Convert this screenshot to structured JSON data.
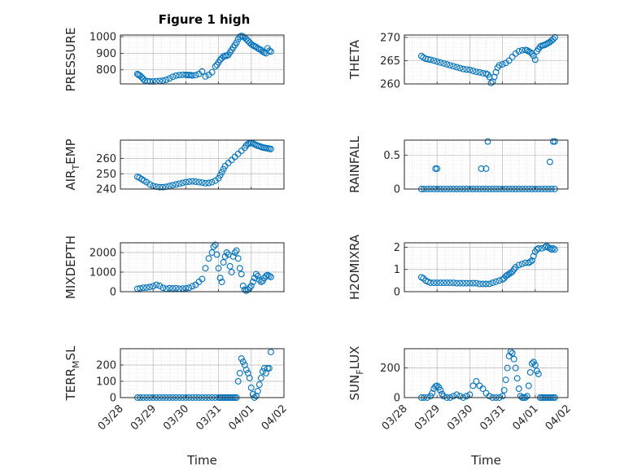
{
  "figure": {
    "title": "Figure 1 high",
    "marker_color": "#0072bd"
  },
  "chart_data": [
    {
      "type": "scatter",
      "ylabel": "PRESSURE",
      "yticks": [
        "800",
        "900",
        "1000"
      ],
      "ylim": [
        715,
        1010
      ],
      "xlim": [
        "03/28",
        "04/02"
      ],
      "xticks": [],
      "x": [
        0.52,
        0.55,
        0.6,
        0.65,
        0.7,
        0.75,
        0.82,
        0.9,
        1.0,
        1.1,
        1.2,
        1.3,
        1.4,
        1.5,
        1.6,
        1.7,
        1.8,
        1.9,
        2.0,
        2.05,
        2.1,
        2.15,
        2.2,
        2.3,
        2.4,
        2.5,
        2.6,
        2.7,
        2.8,
        2.9,
        2.95,
        3.0,
        3.05,
        3.1,
        3.15,
        3.2,
        3.25,
        3.3,
        3.35,
        3.4,
        3.45,
        3.5,
        3.55,
        3.6,
        3.65,
        3.7,
        3.75,
        3.8,
        3.85,
        3.9,
        3.95,
        4.0,
        4.05,
        4.1,
        4.15,
        4.2,
        4.25,
        4.3,
        4.35,
        4.4,
        4.45,
        4.5,
        4.55,
        4.6
      ],
      "y": [
        775,
        770,
        765,
        755,
        745,
        735,
        732,
        730,
        730,
        731,
        733,
        735,
        740,
        748,
        758,
        765,
        768,
        770,
        770,
        769,
        768,
        768,
        766,
        768,
        775,
        790,
        760,
        770,
        785,
        820,
        830,
        845,
        860,
        870,
        880,
        885,
        885,
        890,
        905,
        920,
        935,
        950,
        965,
        985,
        1000,
        1005,
        1000,
        995,
        985,
        975,
        965,
        955,
        948,
        942,
        938,
        930,
        925,
        920,
        910,
        905,
        900,
        930,
        915,
        910
      ]
    },
    {
      "type": "scatter",
      "ylabel": "THETA",
      "yticks": [
        "260",
        "265",
        "270"
      ],
      "ylim": [
        260,
        270.5
      ],
      "xlim": [
        "03/28",
        "04/02"
      ],
      "xticks": [],
      "x": [
        0.52,
        0.58,
        0.65,
        0.72,
        0.8,
        0.9,
        1.0,
        1.1,
        1.2,
        1.3,
        1.4,
        1.5,
        1.6,
        1.7,
        1.8,
        1.9,
        2.0,
        2.1,
        2.2,
        2.3,
        2.4,
        2.5,
        2.55,
        2.6,
        2.65,
        2.7,
        2.75,
        2.8,
        2.85,
        2.9,
        3.0,
        3.1,
        3.2,
        3.3,
        3.4,
        3.5,
        3.6,
        3.7,
        3.75,
        3.8,
        3.85,
        3.9,
        3.95,
        4.0,
        4.05,
        4.1,
        4.15,
        4.2,
        4.25,
        4.3,
        4.35,
        4.4,
        4.45,
        4.5,
        4.55,
        4.6
      ],
      "y": [
        266,
        265.7,
        265.4,
        265.3,
        265.2,
        265,
        264.8,
        264.6,
        264.4,
        264.2,
        264,
        263.8,
        263.6,
        263.4,
        263.2,
        263.1,
        263,
        262.8,
        262.6,
        262.5,
        262.3,
        262.2,
        262,
        261.5,
        260.2,
        260.5,
        261.5,
        262.5,
        263.5,
        264,
        264.2,
        264.5,
        265,
        265.8,
        266.5,
        267,
        267.2,
        267.3,
        267.2,
        267,
        266.8,
        266.5,
        266,
        265.2,
        267,
        267.5,
        268,
        268.2,
        268.3,
        268.4,
        268.6,
        268.8,
        269,
        269.3,
        269.6,
        270
      ]
    },
    {
      "type": "scatter",
      "ylabel": "AIR",
      "ylabel_sub": "T",
      "ylabel_tail": "EMP",
      "yticks": [
        "240",
        "250",
        "260"
      ],
      "ylim": [
        240,
        272
      ],
      "xlim": [
        "03/28",
        "04/02"
      ],
      "xticks": [],
      "x": [
        0.52,
        0.58,
        0.65,
        0.72,
        0.8,
        0.9,
        1.0,
        1.1,
        1.2,
        1.3,
        1.4,
        1.5,
        1.6,
        1.7,
        1.8,
        1.9,
        2.0,
        2.1,
        2.2,
        2.3,
        2.4,
        2.5,
        2.6,
        2.7,
        2.8,
        2.9,
        3.0,
        3.05,
        3.1,
        3.15,
        3.2,
        3.3,
        3.4,
        3.5,
        3.6,
        3.7,
        3.8,
        3.85,
        3.9,
        3.95,
        4.0,
        4.05,
        4.1,
        4.15,
        4.2,
        4.25,
        4.3,
        4.35,
        4.4,
        4.45,
        4.5,
        4.55,
        4.6
      ],
      "y": [
        248,
        247.5,
        246.5,
        245.5,
        244.5,
        243,
        242,
        241.5,
        241.2,
        241.2,
        241.5,
        242,
        242.5,
        243,
        243.5,
        244,
        244.5,
        244.8,
        245,
        244.8,
        244.5,
        244.2,
        243.8,
        244,
        244.5,
        245.5,
        247,
        249,
        251,
        253,
        255,
        257,
        259,
        261,
        263,
        265,
        267,
        268.5,
        269.5,
        270,
        270.2,
        269.8,
        269.3,
        268.8,
        268.3,
        268,
        267.6,
        267.2,
        267,
        266.8,
        266.6,
        266.4,
        266.2
      ]
    },
    {
      "type": "scatter",
      "ylabel": "RAINFALL",
      "yticks": [
        "0",
        "0.5"
      ],
      "ylim": [
        0,
        0.72
      ],
      "xlim": [
        "03/28",
        "04/02"
      ],
      "xticks": [],
      "x": [
        0.52,
        0.6,
        0.7,
        0.8,
        0.9,
        1.0,
        1.1,
        1.2,
        1.3,
        1.4,
        1.5,
        1.6,
        1.7,
        1.8,
        1.9,
        2.0,
        2.1,
        2.2,
        2.3,
        2.4,
        2.5,
        2.6,
        2.7,
        2.8,
        2.9,
        3.0,
        3.1,
        3.2,
        3.3,
        3.4,
        3.5,
        3.6,
        3.7,
        3.8,
        3.9,
        4.0,
        4.1,
        4.2,
        4.3,
        4.4,
        4.5,
        4.6,
        0.95,
        1.0,
        2.35,
        2.5,
        2.55,
        4.45,
        4.55,
        4.6
      ],
      "y": [
        0,
        0,
        0,
        0,
        0,
        0,
        0,
        0,
        0,
        0,
        0,
        0,
        0,
        0,
        0,
        0,
        0,
        0,
        0,
        0,
        0,
        0,
        0,
        0,
        0,
        0,
        0,
        0,
        0,
        0,
        0,
        0,
        0,
        0,
        0,
        0,
        0,
        0,
        0,
        0,
        0,
        0,
        0.3,
        0.3,
        0.3,
        0.3,
        0.7,
        0.4,
        0.7,
        0.7
      ]
    },
    {
      "type": "scatter",
      "ylabel": "MIXDEPTH",
      "yticks": [
        "0",
        "1000",
        "2000"
      ],
      "ylim": [
        0,
        2500
      ],
      "xlim": [
        "03/28",
        "04/02"
      ],
      "xticks": [],
      "x": [
        0.52,
        0.6,
        0.7,
        0.8,
        0.9,
        1.0,
        1.1,
        1.2,
        1.3,
        1.4,
        1.5,
        1.6,
        1.7,
        1.8,
        1.9,
        2.0,
        2.1,
        2.2,
        2.3,
        2.4,
        2.5,
        2.6,
        2.7,
        2.8,
        2.85,
        2.9,
        2.95,
        3.0,
        3.05,
        3.1,
        3.15,
        3.2,
        3.25,
        3.3,
        3.35,
        3.4,
        3.45,
        3.5,
        3.55,
        3.6,
        3.65,
        3.7,
        3.75,
        3.8,
        3.85,
        3.9,
        3.95,
        4.0,
        4.05,
        4.1,
        4.15,
        4.2,
        4.25,
        4.3,
        4.35,
        4.4,
        4.45,
        4.5,
        4.55,
        4.6
      ],
      "y": [
        150,
        170,
        200,
        210,
        240,
        280,
        350,
        300,
        200,
        150,
        180,
        170,
        180,
        150,
        160,
        170,
        200,
        280,
        350,
        500,
        650,
        1200,
        1700,
        2000,
        2300,
        2400,
        1900,
        1200,
        700,
        500,
        1500,
        1800,
        2000,
        1900,
        1300,
        1000,
        1800,
        2000,
        2100,
        1700,
        1200,
        900,
        300,
        100,
        50,
        100,
        200,
        300,
        500,
        700,
        900,
        800,
        600,
        500,
        550,
        700,
        800,
        850,
        800,
        750
      ]
    },
    {
      "type": "scatter",
      "ylabel": "H2OMIXRA",
      "yticks": [
        "0",
        "1",
        "2"
      ],
      "ylim": [
        0,
        2.2
      ],
      "xlim": [
        "03/28",
        "04/02"
      ],
      "xticks": [],
      "x": [
        0.52,
        0.58,
        0.65,
        0.72,
        0.8,
        0.9,
        1.0,
        1.1,
        1.2,
        1.3,
        1.4,
        1.5,
        1.6,
        1.7,
        1.8,
        1.9,
        2.0,
        2.1,
        2.2,
        2.3,
        2.4,
        2.5,
        2.6,
        2.7,
        2.8,
        2.9,
        3.0,
        3.05,
        3.1,
        3.15,
        3.2,
        3.25,
        3.3,
        3.35,
        3.4,
        3.5,
        3.6,
        3.7,
        3.8,
        3.85,
        3.9,
        3.95,
        4.0,
        4.05,
        4.1,
        4.2,
        4.3,
        4.35,
        4.4,
        4.45,
        4.5,
        4.55,
        4.6
      ],
      "y": [
        0.65,
        0.6,
        0.5,
        0.45,
        0.4,
        0.4,
        0.4,
        0.4,
        0.4,
        0.4,
        0.4,
        0.4,
        0.38,
        0.38,
        0.38,
        0.38,
        0.38,
        0.38,
        0.38,
        0.35,
        0.35,
        0.35,
        0.35,
        0.4,
        0.45,
        0.5,
        0.55,
        0.6,
        0.7,
        0.75,
        0.8,
        0.85,
        0.9,
        1.0,
        1.1,
        1.2,
        1.25,
        1.3,
        1.3,
        1.35,
        1.4,
        1.6,
        1.8,
        1.9,
        1.95,
        1.95,
        2.0,
        2.05,
        2.0,
        1.95,
        1.9,
        1.95,
        1.9
      ]
    },
    {
      "type": "scatter",
      "ylabel": "TERR",
      "ylabel_sub": "M",
      "ylabel_tail": "SL",
      "yticks": [
        "0",
        "100",
        "200"
      ],
      "ylim": [
        0,
        300
      ],
      "xlim": [
        "03/28",
        "04/02"
      ],
      "xticks": [
        "03/28",
        "03/29",
        "03/30",
        "03/31",
        "04/01",
        "04/02"
      ],
      "xlabel": "Time",
      "x": [
        0.52,
        0.6,
        0.7,
        0.8,
        0.9,
        1.0,
        1.1,
        1.2,
        1.3,
        1.4,
        1.5,
        1.6,
        1.7,
        1.8,
        1.9,
        2.0,
        2.1,
        2.2,
        2.3,
        2.4,
        2.5,
        2.6,
        2.7,
        2.8,
        2.9,
        3.0,
        3.05,
        3.1,
        3.15,
        3.2,
        3.25,
        3.3,
        3.35,
        3.4,
        3.45,
        3.5,
        3.55,
        3.6,
        3.65,
        3.7,
        3.75,
        3.8,
        3.85,
        3.9,
        3.95,
        4.0,
        4.05,
        4.1,
        4.15,
        4.2,
        4.25,
        4.3,
        4.35,
        4.4,
        4.45,
        4.5,
        4.55,
        4.6
      ],
      "y": [
        0,
        0,
        0,
        0,
        0,
        0,
        0,
        0,
        0,
        0,
        0,
        0,
        0,
        0,
        0,
        0,
        0,
        0,
        0,
        0,
        0,
        0,
        0,
        0,
        0,
        0,
        0,
        0,
        0,
        0,
        0,
        0,
        0,
        0,
        0,
        0,
        0,
        100,
        150,
        240,
        220,
        200,
        170,
        150,
        120,
        60,
        20,
        0,
        10,
        40,
        80,
        120,
        160,
        180,
        150,
        180,
        180,
        280
      ]
    },
    {
      "type": "scatter",
      "ylabel": "SUN",
      "ylabel_sub": "F",
      "ylabel_tail": "LUX",
      "yticks": [
        "0",
        "200"
      ],
      "ylim": [
        0,
        330
      ],
      "xlim": [
        "03/28",
        "04/02"
      ],
      "xticks": [
        "03/28",
        "03/29",
        "03/30",
        "03/31",
        "04/01",
        "04/02"
      ],
      "xlabel": "Time",
      "x": [
        0.52,
        0.6,
        0.7,
        0.8,
        0.85,
        0.9,
        0.95,
        1.0,
        1.05,
        1.1,
        1.15,
        1.2,
        1.3,
        1.4,
        1.5,
        1.6,
        1.7,
        1.8,
        1.9,
        2.0,
        2.1,
        2.2,
        2.3,
        2.4,
        2.5,
        2.6,
        2.7,
        2.8,
        2.9,
        3.0,
        3.05,
        3.1,
        3.15,
        3.2,
        3.25,
        3.3,
        3.35,
        3.4,
        3.45,
        3.5,
        3.55,
        3.6,
        3.65,
        3.7,
        3.75,
        3.8,
        3.85,
        3.9,
        3.95,
        4.0,
        4.05,
        4.1,
        4.15,
        4.2,
        4.25,
        4.3,
        4.35,
        4.4,
        4.45,
        4.5,
        4.55,
        4.6
      ],
      "y": [
        0,
        0,
        0,
        10,
        30,
        60,
        75,
        80,
        70,
        50,
        25,
        10,
        0,
        0,
        10,
        20,
        10,
        0,
        10,
        20,
        80,
        110,
        80,
        60,
        30,
        10,
        0,
        0,
        0,
        10,
        50,
        120,
        200,
        280,
        310,
        300,
        260,
        200,
        130,
        60,
        10,
        0,
        0,
        0,
        10,
        80,
        170,
        230,
        240,
        220,
        180,
        160,
        0,
        0,
        0,
        0,
        0,
        0,
        0,
        0,
        0,
        0
      ]
    }
  ]
}
